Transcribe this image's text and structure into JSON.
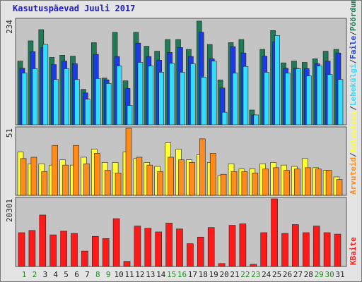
{
  "legend_separator": "/",
  "chart_data": [
    {
      "type": "bar",
      "title": "Kasutuspäevad Juuli 2017",
      "ylim": [
        0,
        234
      ],
      "yticks": [
        234
      ],
      "series": [
        {
          "name": "Pöördumisi",
          "color": "#1f7a55",
          "values": [
            142,
            187,
            212,
            150,
            155,
            153,
            79,
            183,
            104,
            206,
            98,
            206,
            175,
            164,
            190,
            190,
            168,
            231,
            179,
            100,
            183,
            190,
            33,
            168,
            210,
            138,
            142,
            139,
            147,
            164,
            168
          ]
        },
        {
          "name": "Faile",
          "color": "#1a3ce6",
          "values": [
            126,
            163,
            172,
            134,
            142,
            136,
            71,
            157,
            100,
            152,
            81,
            182,
            152,
            144,
            161,
            172,
            152,
            206,
            147,
            82,
            174,
            160,
            22,
            153,
            185,
            126,
            126,
            125,
            136,
            142,
            160
          ]
        },
        {
          "name": "Lehekülgi",
          "color": "#33ddff",
          "values": [
            115,
            125,
            179,
            101,
            125,
            101,
            57,
            103,
            92,
            131,
            43,
            139,
            131,
            117,
            137,
            117,
            136,
            106,
            142,
            28,
            115,
            130,
            22,
            117,
            199,
            115,
            125,
            109,
            131,
            112,
            101
          ]
        }
      ]
    },
    {
      "type": "bar",
      "ylim": [
        0,
        51
      ],
      "yticks": [
        51
      ],
      "series": [
        {
          "name": "Külastusi",
          "color": "#ffff33",
          "values": [
            33,
            24,
            24,
            23,
            27,
            23,
            29,
            35,
            25,
            25,
            33,
            28,
            25,
            22,
            40,
            35,
            27,
            31,
            25,
            15,
            24,
            20,
            20,
            24,
            25,
            23,
            22,
            28,
            21,
            19,
            14
          ]
        },
        {
          "name": "Arvuteid",
          "color": "#ff8c1a",
          "values": [
            28,
            29,
            18,
            38,
            23,
            38,
            24,
            32,
            19,
            17,
            51,
            29,
            23,
            18,
            29,
            27,
            25,
            43,
            32,
            16,
            18,
            18,
            17,
            20,
            21,
            19,
            20,
            21,
            20,
            19,
            12
          ]
        }
      ]
    },
    {
      "type": "bar",
      "ylim": [
        0,
        20301
      ],
      "yticks": [
        20301
      ],
      "categories": [
        "1",
        "2",
        "3",
        "4",
        "5",
        "6",
        "7",
        "8",
        "9",
        "10",
        "11",
        "12",
        "13",
        "14",
        "15",
        "16",
        "17",
        "18",
        "19",
        "20",
        "21",
        "22",
        "23",
        "24",
        "25",
        "26",
        "27",
        "28",
        "29",
        "30",
        "31"
      ],
      "category_colors": [
        "#228b22",
        "#228b22",
        "#222",
        "#222",
        "#222",
        "#222",
        "#222",
        "#228b22",
        "#228b22",
        "#222",
        "#222",
        "#222",
        "#222",
        "#222",
        "#228b22",
        "#228b22",
        "#222",
        "#222",
        "#222",
        "#222",
        "#222",
        "#228b22",
        "#228b22",
        "#222",
        "#222",
        "#222",
        "#222",
        "#222",
        "#228b22",
        "#228b22",
        "#222"
      ],
      "series": [
        {
          "name": "KBaite",
          "color": "#ff1a1a",
          "values": [
            10150,
            10813,
            15446,
            9489,
            10592,
            9930,
            4634,
            9047,
            8385,
            14343,
            1545,
            12136,
            11474,
            10371,
            13019,
            11254,
            6841,
            8827,
            11695,
            883,
            12357,
            12798,
            662,
            10150,
            20301,
            9930,
            12578,
            10150,
            12136,
            10150,
            9709
          ]
        }
      ]
    }
  ]
}
